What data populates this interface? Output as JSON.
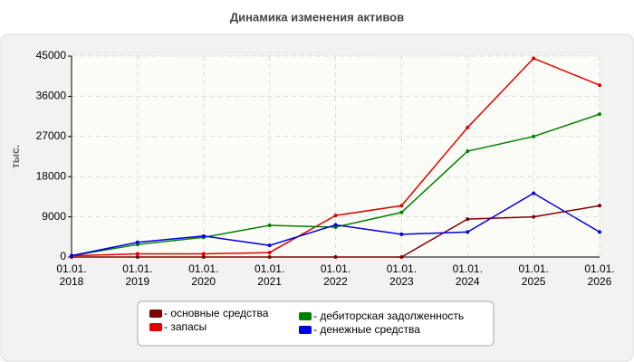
{
  "chart_data": {
    "type": "line",
    "title": "Динамика изменения активов",
    "ylabel": "тыс.",
    "categories": [
      "01.01.\n2018",
      "01.01.\n2019",
      "01.01.\n2020",
      "01.01.\n2021",
      "01.01.\n2022",
      "01.01.\n2023",
      "01.01.\n2024",
      "01.01.\n2025",
      "01.01.\n2026"
    ],
    "series": [
      {
        "name": "- основные средства",
        "color": "#800000",
        "values": [
          0,
          0,
          0,
          0,
          0,
          0,
          8500,
          9000,
          11500
        ]
      },
      {
        "name": "- запасы",
        "color": "#e00000",
        "values": [
          300,
          700,
          700,
          1000,
          9300,
          11500,
          29000,
          44500,
          38500
        ]
      },
      {
        "name": "- дебиторская задолженность",
        "color": "#008000",
        "values": [
          300,
          2800,
          4400,
          7100,
          6700,
          10000,
          23700,
          27000,
          32000
        ]
      },
      {
        "name": "- денежные средства",
        "color": "#0000e0",
        "values": [
          300,
          3300,
          4700,
          2600,
          7200,
          5100,
          5600,
          14300,
          5600
        ]
      }
    ],
    "ylim": [
      0,
      45000
    ],
    "yticks": [
      0,
      9000,
      18000,
      27000,
      36000,
      45000
    ],
    "grid": true
  }
}
